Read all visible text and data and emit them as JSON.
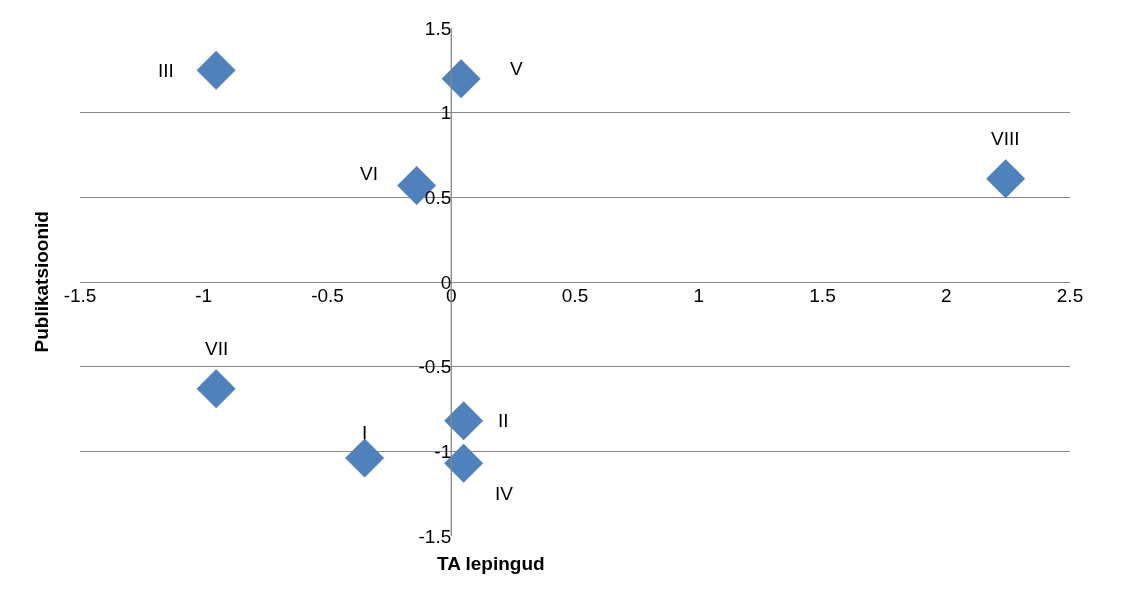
{
  "chart_data": {
    "type": "scatter",
    "xlabel": "TA lepingud",
    "ylabel": "Publikatsioonid",
    "x": [
      -0.35,
      0.05,
      -0.95,
      0.05,
      0.04,
      -0.14,
      -0.95,
      2.24
    ],
    "values": [
      -1.04,
      -0.82,
      1.25,
      -1.07,
      1.2,
      0.57,
      -0.63,
      0.61
    ],
    "color": "#4f81bd",
    "marker": "diamond",
    "annotations": [
      {
        "text": "I",
        "x": -0.35,
        "y": -1.04
      },
      {
        "text": "II",
        "x": 0.05,
        "y": -0.82
      },
      {
        "text": "III",
        "x": -0.95,
        "y": 1.25
      },
      {
        "text": "IV",
        "x": 0.05,
        "y": -1.07
      },
      {
        "text": "V",
        "x": 0.04,
        "y": 1.2
      },
      {
        "text": "VI",
        "x": -0.14,
        "y": 0.57
      },
      {
        "text": "VII",
        "x": -0.95,
        "y": -0.63
      },
      {
        "text": "VIII",
        "x": 2.24,
        "y": 0.61
      }
    ],
    "xlim": [
      -1.5,
      2.5
    ],
    "xticks": [
      -1.5,
      -1,
      -0.5,
      0,
      0.5,
      1,
      1.5,
      2,
      2.5
    ],
    "ylim": [
      -1.5,
      1.5
    ],
    "yticks": [
      -1.5,
      -1,
      -0.5,
      0,
      0.5,
      1,
      1.5
    ],
    "grid": "y"
  }
}
